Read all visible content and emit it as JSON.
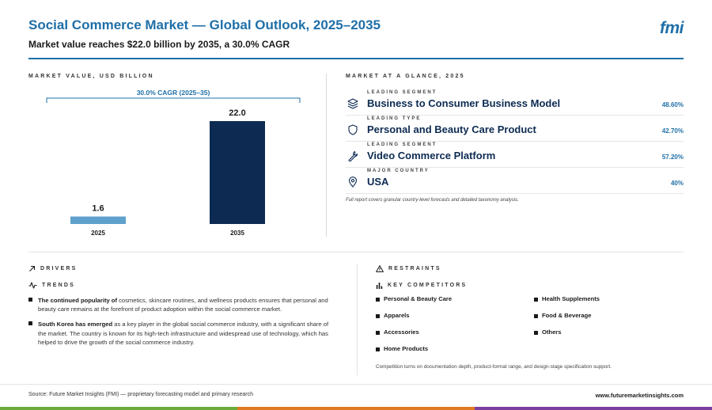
{
  "header": {
    "title": "Social Commerce Market — Global Outlook, 2025–2035",
    "subtitle": "Market value reaches $22.0 billion by 2035, a 30.0% CAGR",
    "logo": "fmi"
  },
  "left_panel": {
    "label": "MARKET VALUE, USD BILLION"
  },
  "chart_data": {
    "type": "bar",
    "categories": [
      "2025",
      "2035"
    ],
    "values": [
      1.6,
      22.0
    ],
    "value_labels": [
      "1.6",
      "22.0"
    ],
    "annotation": "30.0% CAGR (2025–35)",
    "ylim": [
      0,
      22.0
    ],
    "colors": [
      "#5fa1cc",
      "#0d2b52"
    ],
    "grid": false
  },
  "right_panel": {
    "label": "MARKET AT A GLANCE, 2025",
    "rows": [
      {
        "kicker": "LEADING SEGMENT",
        "name": "Business to Consumer Business Model",
        "value": "48.60%",
        "icon": "layers-icon"
      },
      {
        "kicker": "LEADING TYPE",
        "name": "Personal and Beauty Care Product",
        "value": "42.70%",
        "icon": "shield-icon"
      },
      {
        "kicker": "LEADING SEGMENT",
        "name": "Video Commerce Platform",
        "value": "57.20%",
        "icon": "wrench-icon"
      },
      {
        "kicker": "MAJOR COUNTRY",
        "name": "USA",
        "value": "40%",
        "icon": "map-pin-icon"
      }
    ],
    "note": "Full report covers granular country-level forecasts and detailed taxonomy analysis."
  },
  "drivers": {
    "label": "DRIVERS",
    "trends_label": "TRENDS",
    "items": [
      {
        "lead": "The continued popularity of",
        "text": " cosmetics, skincare routines, and wellness products ensures that personal and beauty care remains at the forefront of product adoption within the social commerce market."
      },
      {
        "lead": "South Korea has emerged",
        "text": " as a key player in the global social commerce industry, with a significant share of the market. The country is known for its high-tech infrastructure and widespread use of technology, which has helped to drive the growth of the social commerce industry."
      }
    ]
  },
  "restraints": {
    "label": "RESTRAINTS",
    "competitors_label": "KEY COMPETITORS",
    "competitors": [
      "Personal & Beauty Care",
      "Health Supplements",
      "Apparels",
      "Food & Beverage",
      "Accessories",
      "Others",
      "Home Products"
    ],
    "note": "Competition turns on documentation depth, product-format range, and design-stage specification support."
  },
  "footer": {
    "source": "Source: Future Market Insights (FMI) — proprietary forecasting model and primary research",
    "url": "www.futuremarketinsights.com",
    "bar_colors": [
      "#6aab3a",
      "#e07b22",
      "#7b3fa0"
    ]
  }
}
